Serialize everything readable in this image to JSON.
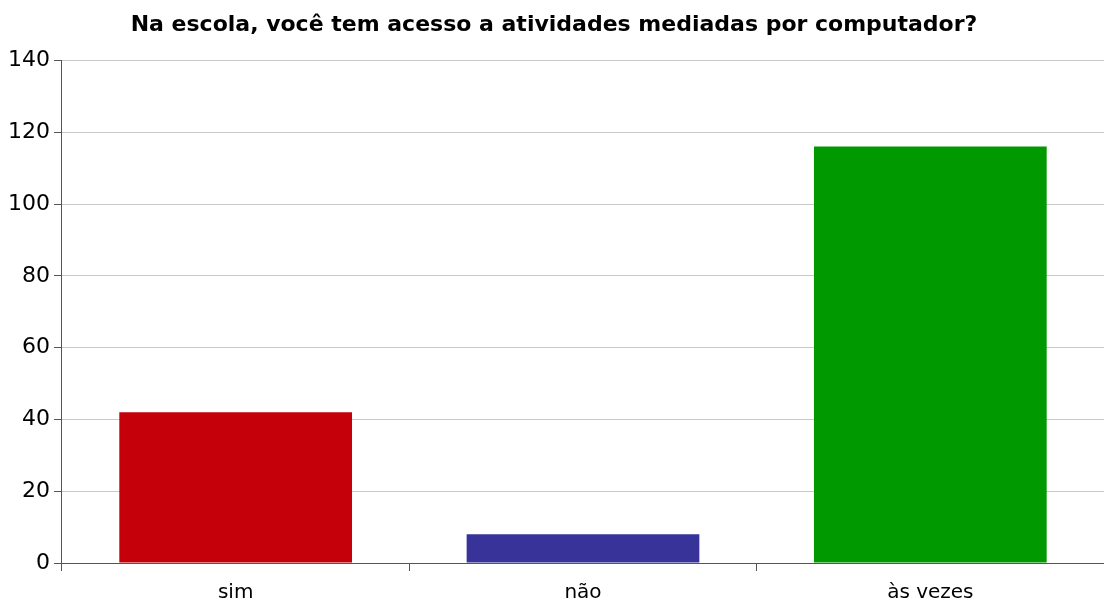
{
  "chart_data": {
    "type": "bar",
    "title": "Na escola, você tem acesso a atividades mediadas por computador?",
    "categories": [
      "sim",
      "não",
      "às vezes"
    ],
    "values": [
      42,
      8,
      116
    ],
    "colors": [
      "#c5000b",
      "#373399",
      "#009900"
    ],
    "ylim": [
      0,
      140
    ],
    "yticks": [
      0,
      20,
      40,
      60,
      80,
      100,
      120,
      140
    ],
    "grid": "y",
    "legend": false
  }
}
